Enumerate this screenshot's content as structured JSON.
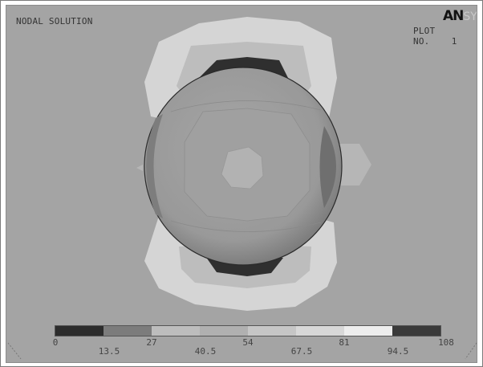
{
  "header": {
    "title": "NODAL SOLUTION",
    "plot_label": "PLOT NO.",
    "plot_number": "1",
    "logo_primary": "AN",
    "logo_secondary": "SYS"
  },
  "legend": {
    "labels_top": [
      "0",
      "27",
      "54",
      "81",
      "108"
    ],
    "labels_bottom": [
      "13.5",
      "40.5",
      "67.5",
      "94.5"
    ],
    "colors": [
      "#2c2c2c",
      "#7c7c7c",
      "#bdbdbd",
      "#b0b0b0",
      "#c6c6c6",
      "#d8d8d8",
      "#ededed",
      "#3a3a3a"
    ]
  },
  "colors": {
    "background": "#a4a4a4",
    "sphere": "#9a9a9a",
    "contour_light": "#d4d4d4",
    "contour_dark": "#2f2f2f"
  }
}
